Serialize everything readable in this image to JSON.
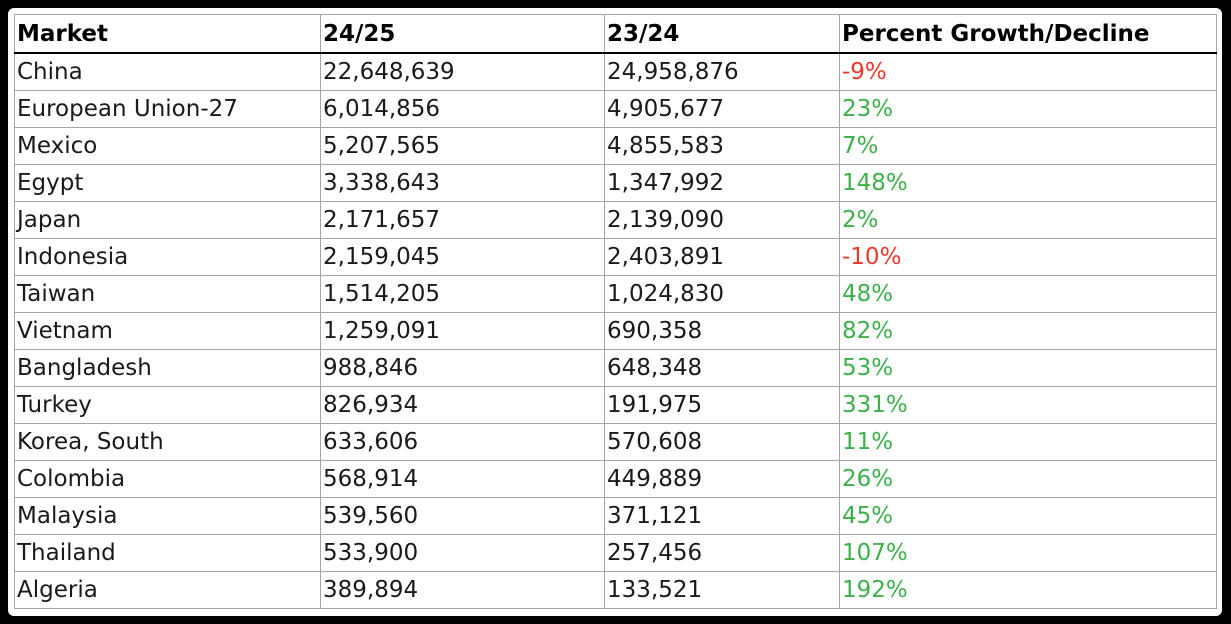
{
  "table": {
    "headers": [
      "Market",
      "24/25",
      "23/24",
      "Percent Growth/Decline"
    ],
    "rows": [
      [
        "China",
        "22,648,639",
        "24,958,876",
        "-9%"
      ],
      [
        "European Union-27",
        "6,014,856",
        "4,905,677",
        "23%"
      ],
      [
        "Mexico",
        "5,207,565",
        "4,855,583",
        "7%"
      ],
      [
        "Egypt",
        "3,338,643",
        "1,347,992",
        "148%"
      ],
      [
        "Japan",
        "2,171,657",
        "2,139,090",
        "2%"
      ],
      [
        "Indonesia",
        "2,159,045",
        "2,403,891",
        "-10%"
      ],
      [
        "Taiwan",
        "1,514,205",
        "1,024,830",
        "48%"
      ],
      [
        "Vietnam",
        "1,259,091",
        "690,358",
        "82%"
      ],
      [
        "Bangladesh",
        "988,846",
        "648,348",
        "53%"
      ],
      [
        "Turkey",
        "826,934",
        "191,975",
        "331%"
      ],
      [
        "Korea, South",
        "633,606",
        "570,608",
        "11%"
      ],
      [
        "Colombia",
        "568,914",
        "449,889",
        "26%"
      ],
      [
        "Malaysia",
        "539,560",
        "371,121",
        "45%"
      ],
      [
        "Thailand",
        "533,900",
        "257,456",
        "107%"
      ],
      [
        "Algeria",
        "389,894",
        "133,521",
        "192%"
      ]
    ]
  },
  "colors": {
    "growth": "#3cb04a",
    "decline": "#e8392b"
  }
}
